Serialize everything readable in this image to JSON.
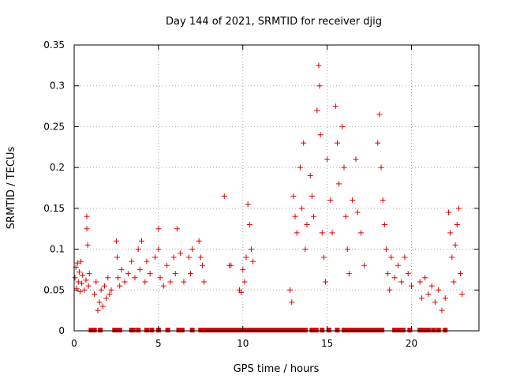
{
  "chart_data": {
    "type": "scatter",
    "title": "Day 144 of 2021, SRMTID for receiver djig",
    "xlabel": "GPS time / hours",
    "ylabel": "SRMTID / TECUs",
    "xlim": [
      0,
      24
    ],
    "ylim": [
      0,
      0.35
    ],
    "xticks": [
      0,
      5,
      10,
      15,
      20
    ],
    "xtick_labels": [
      "0",
      "5",
      "10",
      "15",
      "20"
    ],
    "yticks": [
      0,
      0.05,
      0.1,
      0.15,
      0.2,
      0.25,
      0.3,
      0.35
    ],
    "ytick_labels": [
      "0",
      "0.05",
      "0.1",
      "0.15",
      "0.2",
      "0.25",
      "0.3",
      "0.35"
    ],
    "grid": true,
    "marker": "+",
    "color": "#e00000",
    "series": [
      {
        "name": "SRMTID",
        "points": [
          [
            0.05,
            0.065
          ],
          [
            0.1,
            0.078
          ],
          [
            0.15,
            0.052
          ],
          [
            0.2,
            0.083
          ],
          [
            0.25,
            0.06
          ],
          [
            0.3,
            0.072
          ],
          [
            0.35,
            0.048
          ],
          [
            0.4,
            0.085
          ],
          [
            0.45,
            0.058
          ],
          [
            0.5,
            0.068
          ],
          [
            0.6,
            0.05
          ],
          [
            0.7,
            0.062
          ],
          [
            0.75,
            0.14
          ],
          [
            0.75,
            0.125
          ],
          [
            0.8,
            0.105
          ],
          [
            0.85,
            0.055
          ],
          [
            0.9,
            0.07
          ],
          [
            1.2,
            0.045
          ],
          [
            1.3,
            0.06
          ],
          [
            1.4,
            0.025
          ],
          [
            1.5,
            0.035
          ],
          [
            1.6,
            0.05
          ],
          [
            1.7,
            0.03
          ],
          [
            1.8,
            0.055
          ],
          [
            1.9,
            0.04
          ],
          [
            2.0,
            0.065
          ],
          [
            2.1,
            0.045
          ],
          [
            2.2,
            0.05
          ],
          [
            2.5,
            0.11
          ],
          [
            2.55,
            0.09
          ],
          [
            2.6,
            0.065
          ],
          [
            2.7,
            0.055
          ],
          [
            2.8,
            0.075
          ],
          [
            3.0,
            0.06
          ],
          [
            3.2,
            0.07
          ],
          [
            3.4,
            0.085
          ],
          [
            3.6,
            0.065
          ],
          [
            3.8,
            0.1
          ],
          [
            3.9,
            0.075
          ],
          [
            4.0,
            0.11
          ],
          [
            4.2,
            0.06
          ],
          [
            4.3,
            0.085
          ],
          [
            4.5,
            0.07
          ],
          [
            4.8,
            0.09
          ],
          [
            5.0,
            0.1
          ],
          [
            5.0,
            0.125
          ],
          [
            5.1,
            0.065
          ],
          [
            5.3,
            0.055
          ],
          [
            5.5,
            0.08
          ],
          [
            5.7,
            0.06
          ],
          [
            5.9,
            0.09
          ],
          [
            6.0,
            0.07
          ],
          [
            6.1,
            0.125
          ],
          [
            6.3,
            0.095
          ],
          [
            6.5,
            0.06
          ],
          [
            6.8,
            0.09
          ],
          [
            6.9,
            0.07
          ],
          [
            7.0,
            0.1
          ],
          [
            7.4,
            0.11
          ],
          [
            7.5,
            0.09
          ],
          [
            7.6,
            0.08
          ],
          [
            7.7,
            0.06
          ],
          [
            8.9,
            0.165
          ],
          [
            9.2,
            0.08
          ],
          [
            9.3,
            0.08
          ],
          [
            9.8,
            0.05
          ],
          [
            9.9,
            0.047
          ],
          [
            10.0,
            0.075
          ],
          [
            10.1,
            0.06
          ],
          [
            10.2,
            0.09
          ],
          [
            10.3,
            0.155
          ],
          [
            10.4,
            0.13
          ],
          [
            10.5,
            0.1
          ],
          [
            10.6,
            0.085
          ],
          [
            12.8,
            0.05
          ],
          [
            12.9,
            0.035
          ],
          [
            13.0,
            0.165
          ],
          [
            13.1,
            0.14
          ],
          [
            13.2,
            0.12
          ],
          [
            13.4,
            0.2
          ],
          [
            13.5,
            0.15
          ],
          [
            13.6,
            0.23
          ],
          [
            13.7,
            0.1
          ],
          [
            13.8,
            0.13
          ],
          [
            14.0,
            0.19
          ],
          [
            14.1,
            0.165
          ],
          [
            14.2,
            0.14
          ],
          [
            14.4,
            0.27
          ],
          [
            14.5,
            0.325
          ],
          [
            14.55,
            0.3
          ],
          [
            14.6,
            0.24
          ],
          [
            14.7,
            0.12
          ],
          [
            14.8,
            0.09
          ],
          [
            14.9,
            0.06
          ],
          [
            15.0,
            0.21
          ],
          [
            15.2,
            0.16
          ],
          [
            15.3,
            0.12
          ],
          [
            15.5,
            0.275
          ],
          [
            15.6,
            0.23
          ],
          [
            15.7,
            0.18
          ],
          [
            15.9,
            0.25
          ],
          [
            16.0,
            0.2
          ],
          [
            16.1,
            0.14
          ],
          [
            16.2,
            0.1
          ],
          [
            16.3,
            0.07
          ],
          [
            16.5,
            0.16
          ],
          [
            16.7,
            0.21
          ],
          [
            16.8,
            0.145
          ],
          [
            17.0,
            0.12
          ],
          [
            17.2,
            0.08
          ],
          [
            18.0,
            0.23
          ],
          [
            18.1,
            0.265
          ],
          [
            18.2,
            0.2
          ],
          [
            18.3,
            0.16
          ],
          [
            18.4,
            0.13
          ],
          [
            18.5,
            0.1
          ],
          [
            18.6,
            0.07
          ],
          [
            18.7,
            0.05
          ],
          [
            18.8,
            0.09
          ],
          [
            19.0,
            0.065
          ],
          [
            19.2,
            0.08
          ],
          [
            19.4,
            0.06
          ],
          [
            19.6,
            0.09
          ],
          [
            19.8,
            0.07
          ],
          [
            20.0,
            0.055
          ],
          [
            20.5,
            0.06
          ],
          [
            20.6,
            0.04
          ],
          [
            20.8,
            0.065
          ],
          [
            21.0,
            0.045
          ],
          [
            21.2,
            0.055
          ],
          [
            21.4,
            0.035
          ],
          [
            21.6,
            0.05
          ],
          [
            21.8,
            0.025
          ],
          [
            22.0,
            0.04
          ],
          [
            22.2,
            0.145
          ],
          [
            22.3,
            0.12
          ],
          [
            22.4,
            0.09
          ],
          [
            22.5,
            0.06
          ],
          [
            22.6,
            0.105
          ],
          [
            22.7,
            0.13
          ],
          [
            22.8,
            0.15
          ],
          [
            22.9,
            0.07
          ],
          [
            23.0,
            0.045
          ]
        ]
      }
    ],
    "zero_markers_x": [
      1.0,
      1.1,
      1.2,
      1.55,
      2.4,
      2.5,
      2.7,
      3.4,
      3.5,
      3.8,
      4.3,
      4.6,
      5.0,
      5.55,
      6.2,
      6.4,
      7.0,
      7.5,
      7.75,
      8.0,
      8.25,
      8.5,
      8.75,
      9.0,
      9.25,
      9.5,
      9.75,
      10.0,
      10.25,
      10.5,
      10.75,
      11.0,
      11.25,
      11.5,
      11.75,
      12.0,
      12.25,
      12.5,
      12.75,
      13.0,
      13.25,
      13.5,
      13.7,
      14.1,
      14.35,
      14.7,
      15.1,
      15.6,
      16.0,
      16.25,
      16.5,
      16.75,
      17.0,
      17.25,
      17.5,
      17.75,
      18.0,
      18.25,
      19.0,
      19.25,
      19.5,
      19.9,
      20.5,
      20.75,
      21.0,
      21.3,
      21.6,
      22.0
    ]
  }
}
